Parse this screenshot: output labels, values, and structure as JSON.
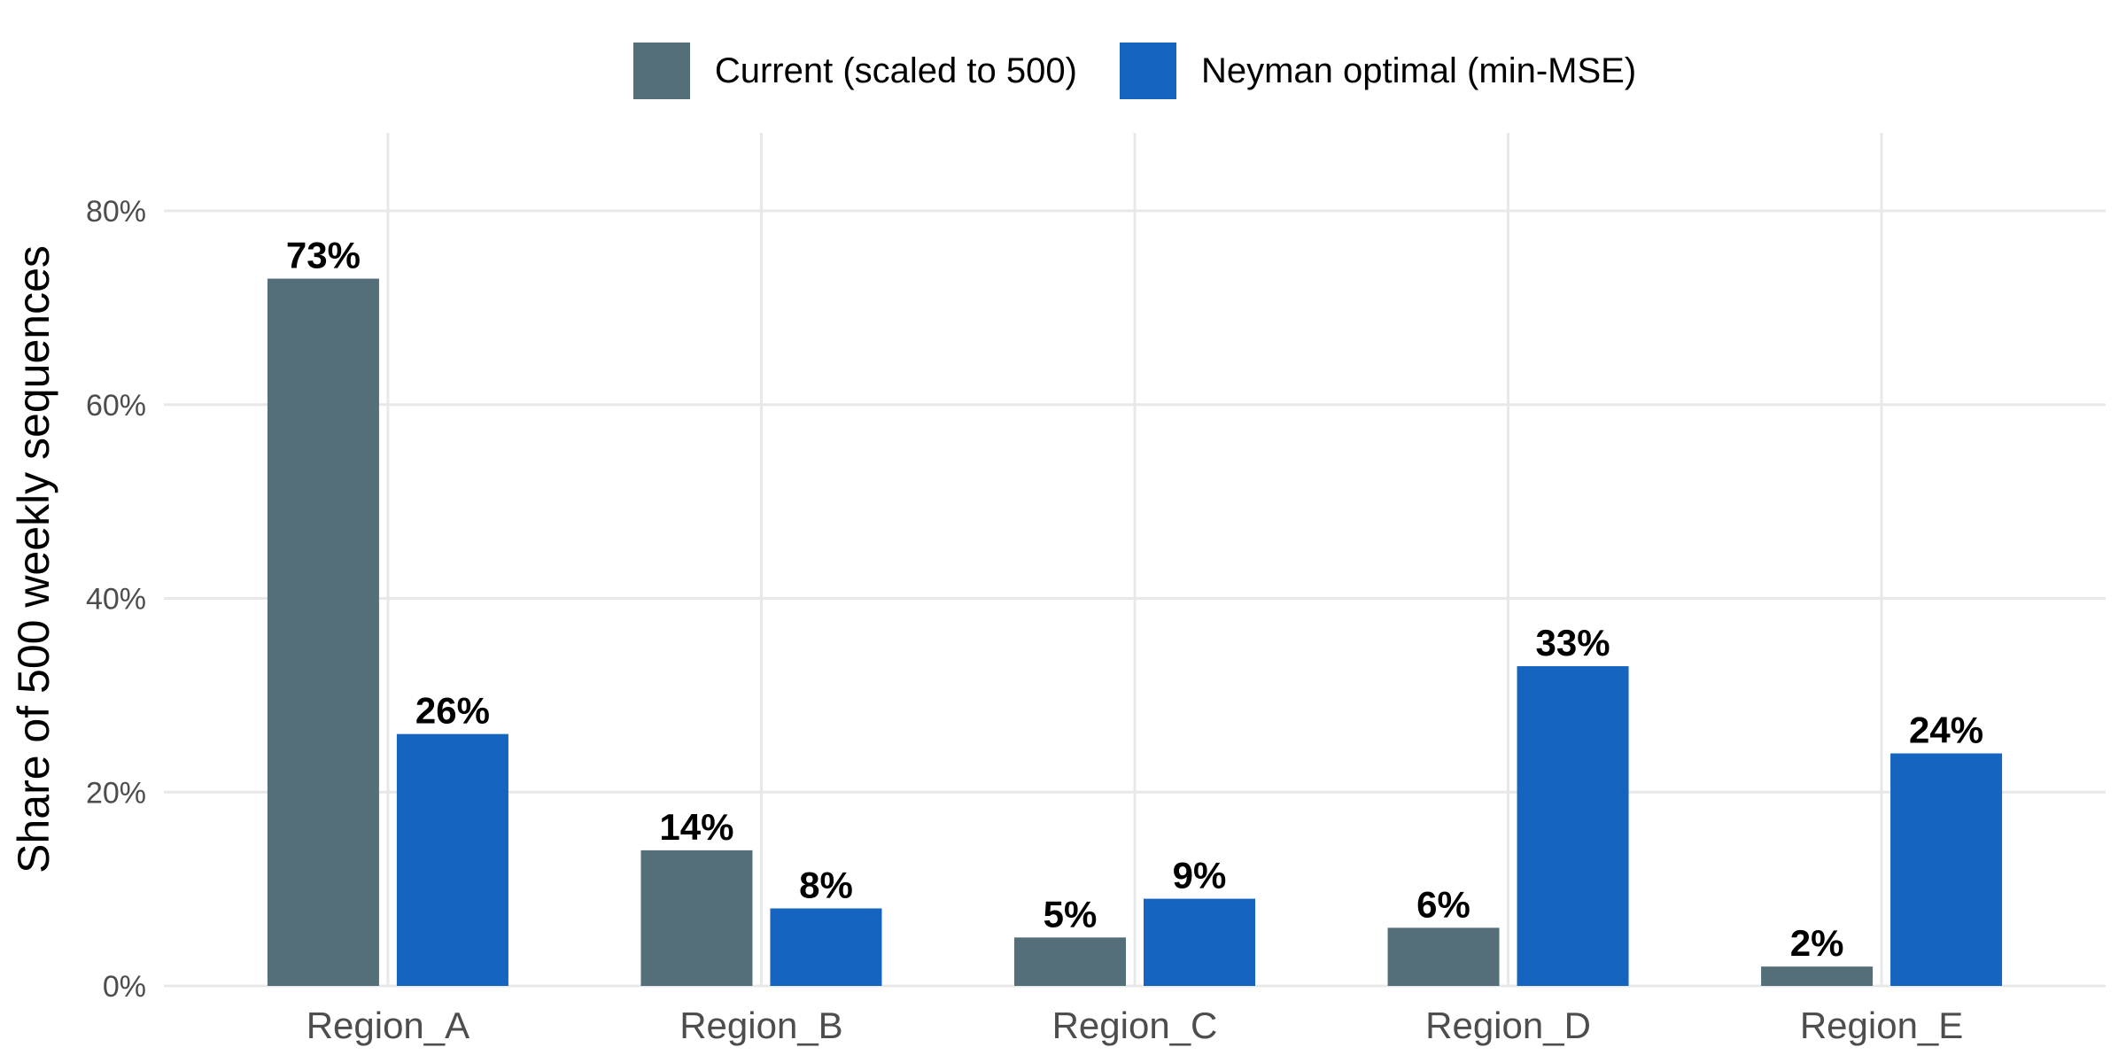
{
  "chart_data": {
    "type": "bar",
    "title": "",
    "xlabel": "",
    "ylabel": "Share of 500 weekly sequences",
    "categories": [
      "Region_A",
      "Region_B",
      "Region_C",
      "Region_D",
      "Region_E"
    ],
    "series": [
      {
        "name": "Current (scaled to 500)",
        "color": "#546E7A",
        "values": [
          73,
          14,
          5,
          6,
          2
        ],
        "value_labels": [
          "73%",
          "14%",
          "5%",
          "6%",
          "2%"
        ]
      },
      {
        "name": "Neyman optimal (min-MSE)",
        "color": "#1565C0",
        "values": [
          26,
          8,
          9,
          33,
          24
        ],
        "value_labels": [
          "26%",
          "8%",
          "9%",
          "33%",
          "24%"
        ]
      }
    ],
    "y_ticks": [
      {
        "value": 0,
        "label": "0%"
      },
      {
        "value": 20,
        "label": "20%"
      },
      {
        "value": 40,
        "label": "40%"
      },
      {
        "value": 60,
        "label": "60%"
      },
      {
        "value": 80,
        "label": "80%"
      }
    ],
    "ylim": [
      0,
      88
    ],
    "grid": {
      "horizontal_major": true,
      "vertical_major": true,
      "minor": false,
      "color": "#E8E8E8"
    },
    "legend_position": "top-center",
    "background": "#FFFFFF"
  }
}
